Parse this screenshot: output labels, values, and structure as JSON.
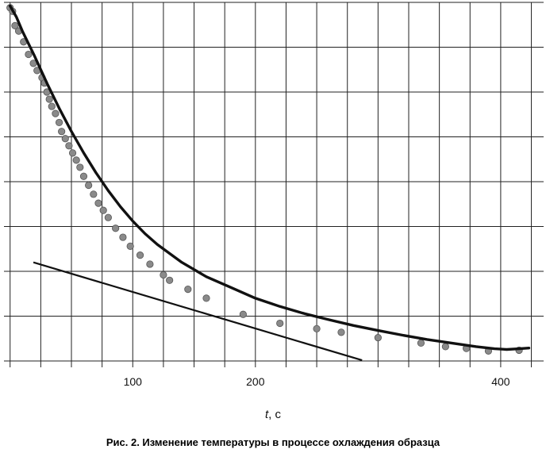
{
  "chart_data": {
    "type": "scatter",
    "title": "",
    "caption": "Рис. 2. Изменение температуры в процессе охлаждения образца",
    "xlabel": {
      "var": "t",
      "unit": ", с"
    },
    "ylabel": "",
    "xlim": [
      -5,
      435
    ],
    "ylim": [
      0,
      100
    ],
    "x_ticks": [
      100,
      200,
      400
    ],
    "y_ticks": [],
    "grid": true,
    "legend": "none",
    "colors": {
      "points": "#8a8a8a",
      "fit": "#111111",
      "tangent": "#111111",
      "grid": "#222222"
    },
    "series": [
      {
        "kind": "points",
        "x": [
          0,
          2,
          4,
          7,
          11,
          15,
          19,
          22,
          26,
          28,
          30,
          32,
          34,
          37,
          40,
          42,
          45,
          48,
          51,
          54,
          57,
          60,
          64,
          68,
          72,
          76,
          80,
          86,
          92,
          98,
          106,
          114,
          125,
          130,
          145,
          160,
          190,
          220,
          250,
          270,
          300,
          335,
          355,
          372,
          390,
          415
        ],
        "y": [
          98.5,
          97.5,
          93.5,
          92,
          89,
          85.5,
          83,
          81,
          79,
          77.5,
          75,
          73,
          71,
          69,
          66.5,
          64,
          62,
          60,
          58,
          56,
          54,
          51.5,
          49,
          46.5,
          44,
          42,
          40,
          37,
          34.5,
          32,
          29.5,
          27,
          24,
          22.5,
          20,
          17.5,
          13,
          10.5,
          9,
          8,
          6.5,
          5,
          4,
          3.5,
          2.8,
          3
        ]
      },
      {
        "kind": "fit",
        "x": [
          0,
          5,
          10,
          20,
          30,
          40,
          50,
          60,
          70,
          80,
          90,
          100,
          110,
          120,
          140,
          160,
          180,
          200,
          220,
          240,
          260,
          280,
          300,
          320,
          340,
          360,
          380,
          395,
          405,
          415,
          423
        ],
        "y": [
          99,
          96,
          92,
          85,
          77.5,
          70.5,
          64,
          58,
          52.5,
          47.5,
          43,
          39,
          35.5,
          32.5,
          27.5,
          23.5,
          20.5,
          17.5,
          15.2,
          13.2,
          11.5,
          9.9,
          8.5,
          7.2,
          6,
          5,
          4,
          3.4,
          3.2,
          3.4,
          3.6
        ]
      },
      {
        "kind": "tangent",
        "x": [
          19,
          287
        ],
        "y": [
          27.5,
          0.2
        ]
      }
    ]
  }
}
